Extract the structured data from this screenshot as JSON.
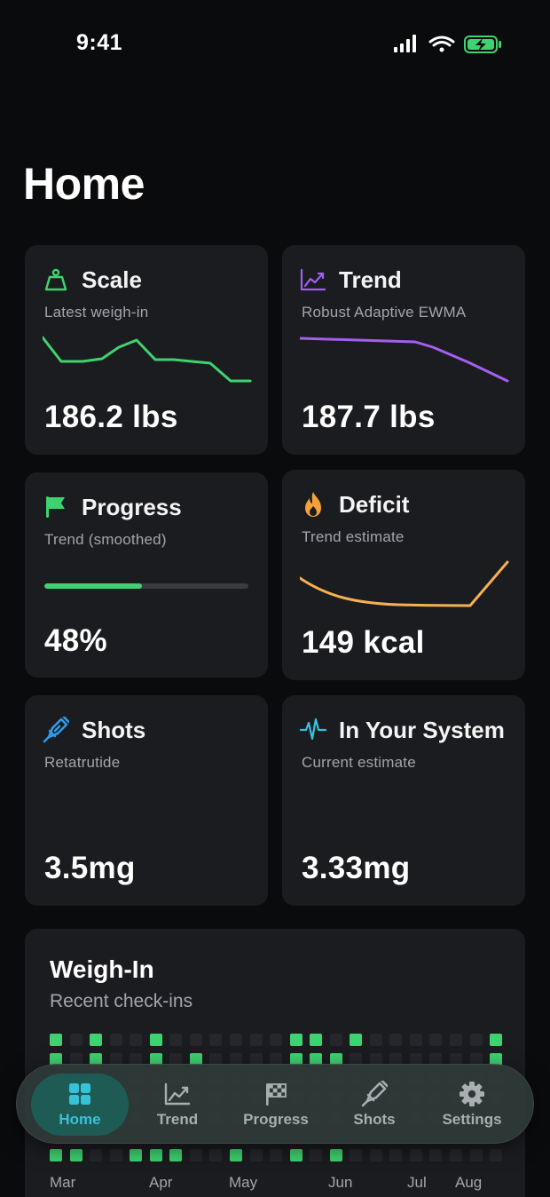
{
  "status_bar": {
    "time": "9:41"
  },
  "page": {
    "title": "Home"
  },
  "cards": {
    "scale": {
      "title": "Scale",
      "subtitle": "Latest weigh-in",
      "value": "186.2 lbs",
      "icon": "scale-icon",
      "color": "#3fd270"
    },
    "trend": {
      "title": "Trend",
      "subtitle": "Robust Adaptive EWMA",
      "value": "187.7 lbs",
      "icon": "chart-line-icon",
      "color": "#a35ff0"
    },
    "progress": {
      "title": "Progress",
      "subtitle": "Trend (smoothed)",
      "value": "48%",
      "fraction": 0.48,
      "icon": "flag-icon",
      "color": "#3fd270"
    },
    "deficit": {
      "title": "Deficit",
      "subtitle": "Trend estimate",
      "value": "149 kcal",
      "icon": "flame-icon",
      "color": "#f5b152"
    },
    "shots": {
      "title": "Shots",
      "subtitle": "Retatrutide",
      "value": "3.5mg",
      "icon": "syringe-icon",
      "color": "#2f9bea"
    },
    "system": {
      "title": "In Your System",
      "subtitle": "Current estimate",
      "value": "3.33mg",
      "icon": "pulse-icon",
      "color": "#38c2d8"
    }
  },
  "weigh_in": {
    "title": "Weigh-In",
    "subtitle": "Recent check-ins",
    "months": [
      "Mar",
      "Apr",
      "May",
      "Jun",
      "Jul",
      "Aug"
    ],
    "grid_on": [
      [
        0,
        2,
        5,
        12,
        13,
        15,
        22
      ],
      [
        0,
        2,
        5,
        7,
        12,
        13,
        14,
        22
      ],
      [],
      [],
      [],
      [
        0,
        1,
        4,
        5,
        6,
        9,
        12,
        14
      ]
    ]
  },
  "tabbar": {
    "tabs": [
      {
        "label": "Home",
        "icon": "home-grid-icon",
        "active": true
      },
      {
        "label": "Trend",
        "icon": "chart-line-icon",
        "active": false
      },
      {
        "label": "Progress",
        "icon": "checkered-flag-icon",
        "active": false
      },
      {
        "label": "Shots",
        "icon": "syringe-icon",
        "active": false
      },
      {
        "label": "Settings",
        "icon": "gear-icon",
        "active": false
      }
    ]
  }
}
